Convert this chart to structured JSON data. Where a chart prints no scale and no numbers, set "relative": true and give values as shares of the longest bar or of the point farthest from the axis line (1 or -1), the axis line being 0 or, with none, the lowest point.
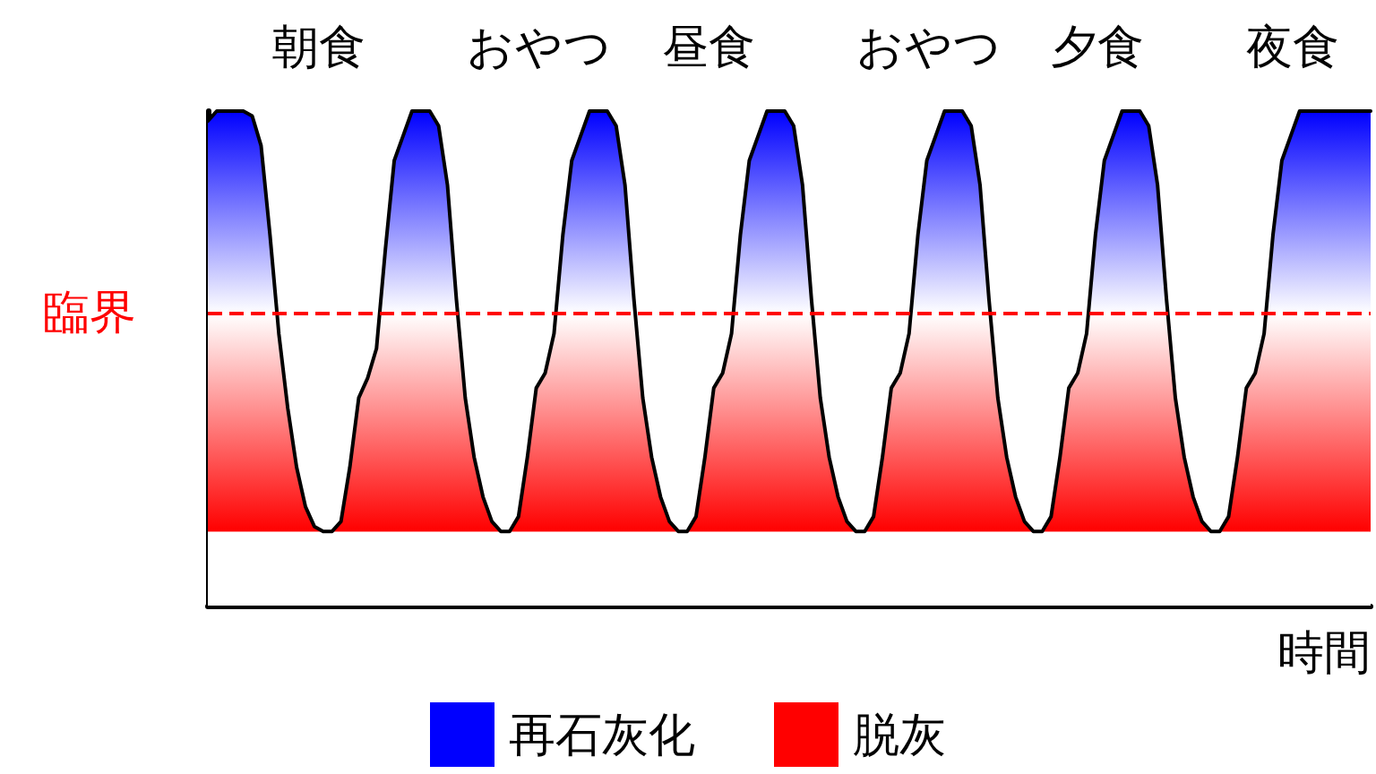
{
  "chart_data": {
    "type": "area",
    "relative": true,
    "xlabel": "時間",
    "annotations": [
      "朝食",
      "おやつ",
      "昼食",
      "おやつ",
      "夕食",
      "夜食",
      "再石灰化",
      "脱灰"
    ],
    "ref_lines": [
      {
        "axis": "y",
        "value": 0.59,
        "label": "臨界",
        "color": "#ff0000",
        "line_style": "dashed"
      }
    ],
    "categories": [
      null,
      null,
      null,
      null,
      null,
      null,
      null,
      null,
      null,
      null,
      null,
      null,
      null,
      null,
      null,
      null,
      null,
      null,
      null,
      null,
      null,
      null,
      null,
      null,
      null,
      null,
      null,
      null,
      null,
      null,
      null,
      null,
      null,
      null,
      null,
      null,
      null,
      null,
      null,
      null,
      null,
      null,
      null,
      null,
      null,
      null,
      null,
      null,
      null,
      null,
      null,
      null,
      null,
      null,
      null,
      null,
      null,
      null,
      null,
      null,
      null,
      null,
      null,
      null,
      null,
      null,
      null,
      null,
      null,
      null,
      null,
      null,
      null,
      null,
      null,
      null,
      null,
      null,
      null,
      null,
      null,
      null,
      null,
      null,
      null,
      null,
      null,
      null,
      null,
      null,
      null,
      null,
      null,
      null,
      null,
      null,
      null,
      null,
      null,
      null,
      null,
      null,
      null,
      null,
      null,
      null,
      null,
      null,
      null,
      null,
      null,
      null,
      null,
      null,
      null,
      null,
      null,
      null,
      null,
      null,
      null,
      null,
      null,
      null,
      null,
      null,
      null,
      null,
      null,
      null,
      null,
      null
    ],
    "series": [
      {
        "color": "#000000",
        "values": [
          0.98,
          1.0,
          1.0,
          1.0,
          1.0,
          0.99,
          0.93,
          0.75,
          0.55,
          0.4,
          0.28,
          0.2,
          0.16,
          0.15,
          0.15,
          0.17,
          0.28,
          0.42,
          0.46,
          0.52,
          0.72,
          0.9,
          0.95,
          1.0,
          1.0,
          1.0,
          0.97,
          0.85,
          0.62,
          0.42,
          0.3,
          0.22,
          0.17,
          0.15,
          0.15,
          0.18,
          0.3,
          0.44,
          0.47,
          0.55,
          0.75,
          0.9,
          0.95,
          1.0,
          1.0,
          1.0,
          0.97,
          0.85,
          0.62,
          0.42,
          0.3,
          0.22,
          0.17,
          0.15,
          0.15,
          0.18,
          0.3,
          0.44,
          0.47,
          0.55,
          0.75,
          0.9,
          0.95,
          1.0,
          1.0,
          1.0,
          0.97,
          0.85,
          0.62,
          0.42,
          0.3,
          0.22,
          0.17,
          0.15,
          0.15,
          0.18,
          0.3,
          0.44,
          0.47,
          0.55,
          0.75,
          0.9,
          0.95,
          1.0,
          1.0,
          1.0,
          0.97,
          0.85,
          0.62,
          0.42,
          0.3,
          0.22,
          0.17,
          0.15,
          0.15,
          0.18,
          0.3,
          0.44,
          0.47,
          0.55,
          0.75,
          0.9,
          0.95,
          1.0,
          1.0,
          1.0,
          0.97,
          0.85,
          0.62,
          0.42,
          0.3,
          0.22,
          0.17,
          0.15,
          0.15,
          0.18,
          0.3,
          0.44,
          0.47,
          0.55,
          0.75,
          0.9,
          0.95,
          1.0,
          1.0,
          1.0,
          1.0,
          1.0,
          1.0,
          1.0,
          1.0,
          1.0
        ]
      }
    ]
  }
}
